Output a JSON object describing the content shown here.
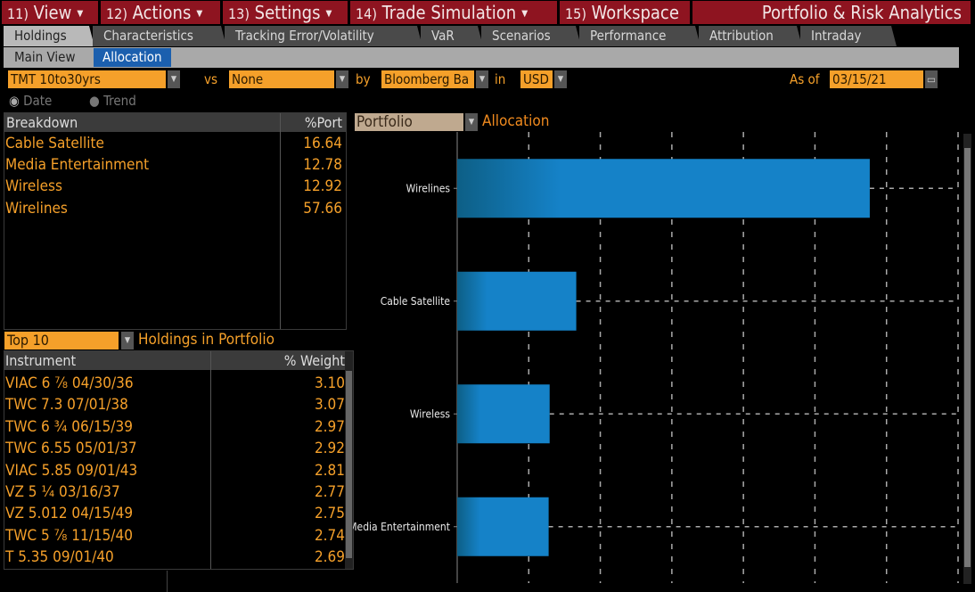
{
  "menu": [
    {
      "num": "11)",
      "label": "View"
    },
    {
      "num": "12)",
      "label": "Actions"
    },
    {
      "num": "13)",
      "label": "Settings"
    },
    {
      "num": "14)",
      "label": "Trade Simulation"
    },
    {
      "num": "15)",
      "label": "Workspace"
    }
  ],
  "app_title": "Portfolio & Risk Analytics",
  "tabs": [
    "Holdings",
    "Characteristics",
    "Tracking Error/Volatility",
    "VaR",
    "Scenarios",
    "Performance",
    "Attribution",
    "Intraday"
  ],
  "subtabs": [
    "Main View",
    "Allocation"
  ],
  "controls": {
    "portfolio": "TMT 10to30yrs",
    "vs_label": "vs",
    "benchmark": "None",
    "by_label": "by",
    "classification": "Bloomberg Ba",
    "in_label": "in",
    "currency": "USD",
    "asof_label": "As of",
    "asof_date": "03/15/21",
    "radio_date": "Date",
    "radio_trend": "Trend"
  },
  "breakdown": {
    "headers": [
      "Breakdown",
      "%Port"
    ],
    "rows": [
      {
        "name": "Cable Satellite",
        "value": "16.64"
      },
      {
        "name": "Media Entertainment",
        "value": "12.78"
      },
      {
        "name": "Wireless",
        "value": "12.92"
      },
      {
        "name": "Wirelines",
        "value": "57.66"
      }
    ]
  },
  "holdings": {
    "top_select": "Top 10",
    "title": "Holdings in Portfolio",
    "headers": [
      "Instrument",
      "% Weight"
    ],
    "rows": [
      {
        "name": "VIAC 6 ⁷⁄₈ 04/30/36",
        "value": "3.10"
      },
      {
        "name": "TWC 7.3 07/01/38",
        "value": "3.07"
      },
      {
        "name": "TWC 6 ³⁄₄ 06/15/39",
        "value": "2.97"
      },
      {
        "name": "TWC 6.55 05/01/37",
        "value": "2.92"
      },
      {
        "name": "VIAC 5.85 09/01/43",
        "value": "2.81"
      },
      {
        "name": "VZ 5 ¹⁄₄ 03/16/37",
        "value": "2.77"
      },
      {
        "name": "VZ 5.012 04/15/49",
        "value": "2.75"
      },
      {
        "name": "TWC 5 ⁷⁄₈ 11/15/40",
        "value": "2.74"
      },
      {
        "name": "T 5.35 09/01/40",
        "value": "2.69"
      }
    ]
  },
  "chart_panel": {
    "selector": "Portfolio",
    "title": "Allocation"
  },
  "chart_data": {
    "type": "bar",
    "orientation": "horizontal",
    "title": "Allocation",
    "categories": [
      "Wirelines",
      "Cable Satellite",
      "Wireless",
      "Media Entertainment"
    ],
    "values": [
      57.66,
      16.64,
      12.92,
      12.78
    ],
    "xlim": [
      0,
      70
    ],
    "grid": true,
    "grid_step": 10,
    "bar_color": "#1582c8"
  }
}
